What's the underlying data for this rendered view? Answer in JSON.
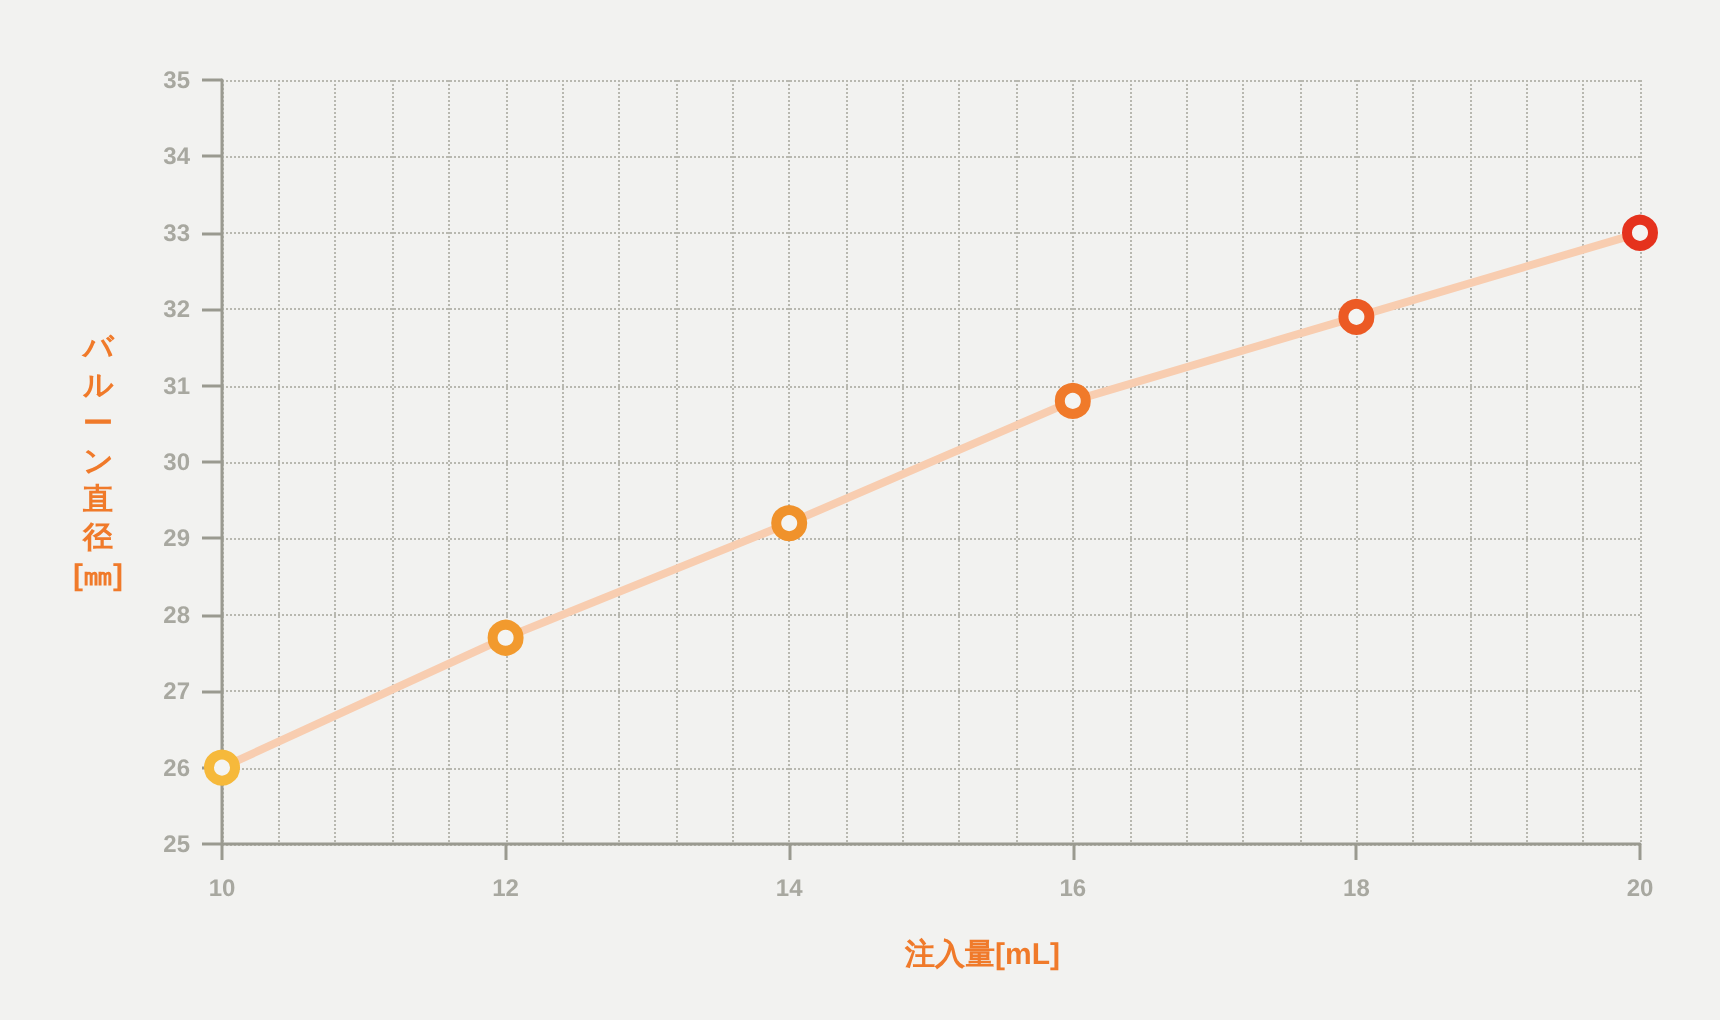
{
  "chart_data": {
    "type": "line",
    "xlabel": "注入量[mL]",
    "ylabel": "バルーン直径[㎜]",
    "x": [
      10,
      12,
      14,
      16,
      18,
      20
    ],
    "series": [
      {
        "color": "#f8cdb0",
        "colors": [
          "#f6b93b",
          "#f29a2e",
          "#f0922b",
          "#f07a2a",
          "#ec5a24",
          "#e5321d"
        ],
        "values": [
          26.0,
          27.7,
          29.2,
          30.8,
          31.9,
          33.0
        ]
      }
    ],
    "xlim": [
      10,
      20
    ],
    "xticks": [
      10,
      12,
      14,
      16,
      18,
      20
    ],
    "ylim": [
      25,
      35
    ],
    "yticks": [
      25,
      26,
      27,
      28,
      29,
      30,
      31,
      32,
      33,
      34,
      35
    ],
    "grid": true,
    "marker": "circle",
    "line_style": "solid"
  }
}
